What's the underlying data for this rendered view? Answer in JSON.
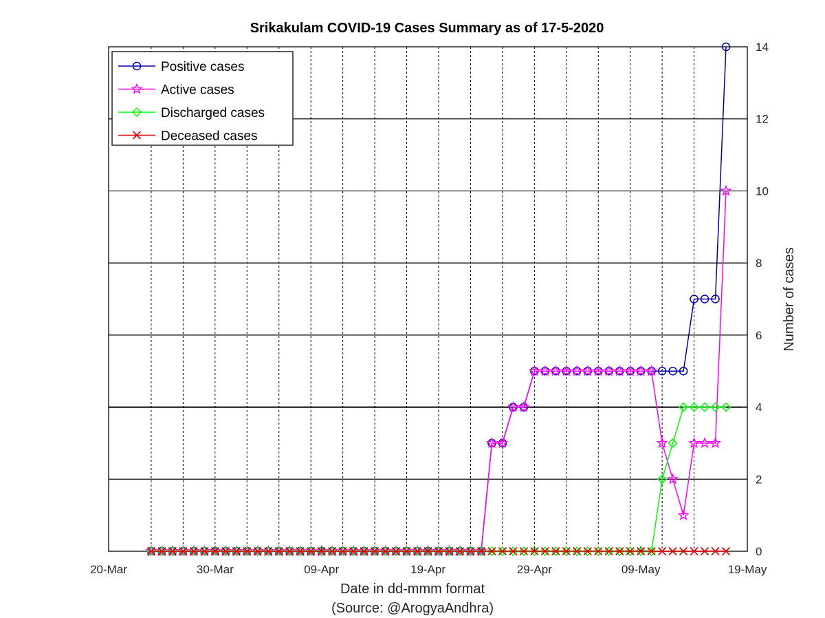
{
  "chart_data": {
    "type": "line",
    "title": "Srikakulam COVID-19 Cases Summary as of 17-5-2020",
    "xlabel": "Date in dd-mmm format",
    "xlabel_source": "(Source: @ArogyaAndhra)",
    "ylabel": "Number of cases",
    "x_start": "2020-03-20",
    "x_end": "2020-05-19",
    "xlim": [
      "2020-03-20",
      "2020-05-19"
    ],
    "ylim": [
      0,
      14
    ],
    "x_tick_labels": [
      "20-Mar",
      "30-Mar",
      "09-Apr",
      "19-Apr",
      "29-Apr",
      "09-May",
      "19-May"
    ],
    "x_tick_dates": [
      "2020-03-20",
      "2020-03-30",
      "2020-04-09",
      "2020-04-19",
      "2020-04-29",
      "2020-05-09",
      "2020-05-19"
    ],
    "y_ticks": [
      0,
      2,
      4,
      6,
      8,
      10,
      12,
      14
    ],
    "grid": "on",
    "y_axis_side": "right",
    "legend_position": "top-left",
    "first_date": "2020-03-24",
    "last_date": "2020-05-17",
    "series": [
      {
        "name": "Positive cases",
        "color": "#0000AA",
        "marker": "circle",
        "values": [
          0,
          0,
          0,
          0,
          0,
          0,
          0,
          0,
          0,
          0,
          0,
          0,
          0,
          0,
          0,
          0,
          0,
          0,
          0,
          0,
          0,
          0,
          0,
          0,
          0,
          0,
          0,
          0,
          0,
          0,
          0,
          0,
          3,
          3,
          4,
          4,
          5,
          5,
          5,
          5,
          5,
          5,
          5,
          5,
          5,
          5,
          5,
          5,
          5,
          5,
          5,
          7,
          7,
          7,
          14
        ]
      },
      {
        "name": "Active cases",
        "color": "#FF00FF",
        "marker": "star",
        "values": [
          0,
          0,
          0,
          0,
          0,
          0,
          0,
          0,
          0,
          0,
          0,
          0,
          0,
          0,
          0,
          0,
          0,
          0,
          0,
          0,
          0,
          0,
          0,
          0,
          0,
          0,
          0,
          0,
          0,
          0,
          0,
          0,
          3,
          3,
          4,
          4,
          5,
          5,
          5,
          5,
          5,
          5,
          5,
          5,
          5,
          5,
          5,
          5,
          3,
          2,
          1,
          3,
          3,
          3,
          10
        ]
      },
      {
        "name": "Discharged cases",
        "color": "#00FF00",
        "marker": "diamond",
        "values": [
          0,
          0,
          0,
          0,
          0,
          0,
          0,
          0,
          0,
          0,
          0,
          0,
          0,
          0,
          0,
          0,
          0,
          0,
          0,
          0,
          0,
          0,
          0,
          0,
          0,
          0,
          0,
          0,
          0,
          0,
          0,
          0,
          0,
          0,
          0,
          0,
          0,
          0,
          0,
          0,
          0,
          0,
          0,
          0,
          0,
          0,
          0,
          0,
          2,
          3,
          4,
          4,
          4,
          4,
          4
        ]
      },
      {
        "name": "Deceased cases",
        "color": "#DD0000",
        "marker": "x",
        "values": [
          0,
          0,
          0,
          0,
          0,
          0,
          0,
          0,
          0,
          0,
          0,
          0,
          0,
          0,
          0,
          0,
          0,
          0,
          0,
          0,
          0,
          0,
          0,
          0,
          0,
          0,
          0,
          0,
          0,
          0,
          0,
          0,
          0,
          0,
          0,
          0,
          0,
          0,
          0,
          0,
          0,
          0,
          0,
          0,
          0,
          0,
          0,
          0,
          0,
          0,
          0,
          0,
          0,
          0,
          0
        ]
      }
    ]
  }
}
